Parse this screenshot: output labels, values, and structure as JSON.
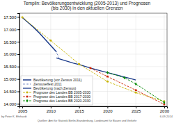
{
  "chart_data": {
    "type": "line",
    "title": "Templin: Bevölkerungsentwicklung (2005-2013) und Prognosen\n(bis 2030) in den aktuellen Grenzen",
    "xlim": [
      2004.5,
      2030.5
    ],
    "ylim": [
      13900,
      17650
    ],
    "xticks": [
      2005,
      2010,
      2015,
      2020,
      2025,
      2030
    ],
    "yticks": [
      {
        "value": 14000,
        "label": "14.000"
      },
      {
        "value": 14500,
        "label": "14.500"
      },
      {
        "value": 15000,
        "label": "15.000"
      },
      {
        "value": 15500,
        "label": "15.500"
      },
      {
        "value": 16000,
        "label": "16.000"
      },
      {
        "value": 16500,
        "label": "16.500"
      },
      {
        "value": 17000,
        "label": "17.000"
      },
      {
        "value": 17500,
        "label": "17.500"
      }
    ],
    "grid": true,
    "legend": "lower left",
    "annotations": [
      "by Peter K. Ehrhardt",
      "Quellen: Amt für Statistik Berlin-Brandenburg, Landesamt für Bauen und Verkehr",
      "6-09-2014"
    ],
    "series": [
      {
        "name": "Bevölkerung (vor Zensus 2011)",
        "color": "#1a3a8a",
        "line_style": "solid",
        "x": [
          2005,
          2006,
          2007,
          2008,
          2009,
          2010,
          2011
        ],
        "values": [
          17480,
          17280,
          17080,
          16850,
          16600,
          16350,
          16100
        ]
      },
      {
        "name": "Zensuseffekt 2011",
        "color": "#3050aa",
        "line_style": "dotted",
        "x": [
          2011,
          2011.5
        ],
        "values": [
          16100,
          15800
        ]
      },
      {
        "name": "Bevölkerung (nach Zensus)",
        "color": "#1a3a8a",
        "line_style": "solid",
        "x": [
          2011,
          2012,
          2013,
          2014,
          2015,
          2016,
          2017,
          2018,
          2019,
          2020,
          2021,
          2022,
          2023,
          2024,
          2025
        ],
        "values": [
          15850,
          15780,
          15710,
          15640,
          15580,
          15510,
          15440,
          15380,
          15320,
          15260,
          15200,
          15140,
          15080,
          15020,
          14960
        ]
      },
      {
        "name": "Prognose des Landes BB 2005-2030",
        "color": "#c8b400",
        "line_style": "dashed",
        "marker": "circle",
        "x": [
          2005,
          2010,
          2015,
          2020,
          2025,
          2030
        ],
        "values": [
          17480,
          16550,
          15600,
          14900,
          14450,
          14100
        ]
      },
      {
        "name": "Prognose des Landes BB 2017-2030",
        "color": "#cc2200",
        "line_style": "dashed",
        "marker": "square",
        "x": [
          2017,
          2020,
          2025,
          2030
        ],
        "values": [
          15440,
          15100,
          14550,
          13980
        ]
      },
      {
        "name": "Prognose des Landes BB 2020-2030",
        "color": "#008800",
        "line_style": "dashed",
        "marker": "diamond",
        "x": [
          2020,
          2023,
          2025,
          2030
        ],
        "values": [
          15260,
          15050,
          14800,
          14050
        ]
      }
    ]
  }
}
